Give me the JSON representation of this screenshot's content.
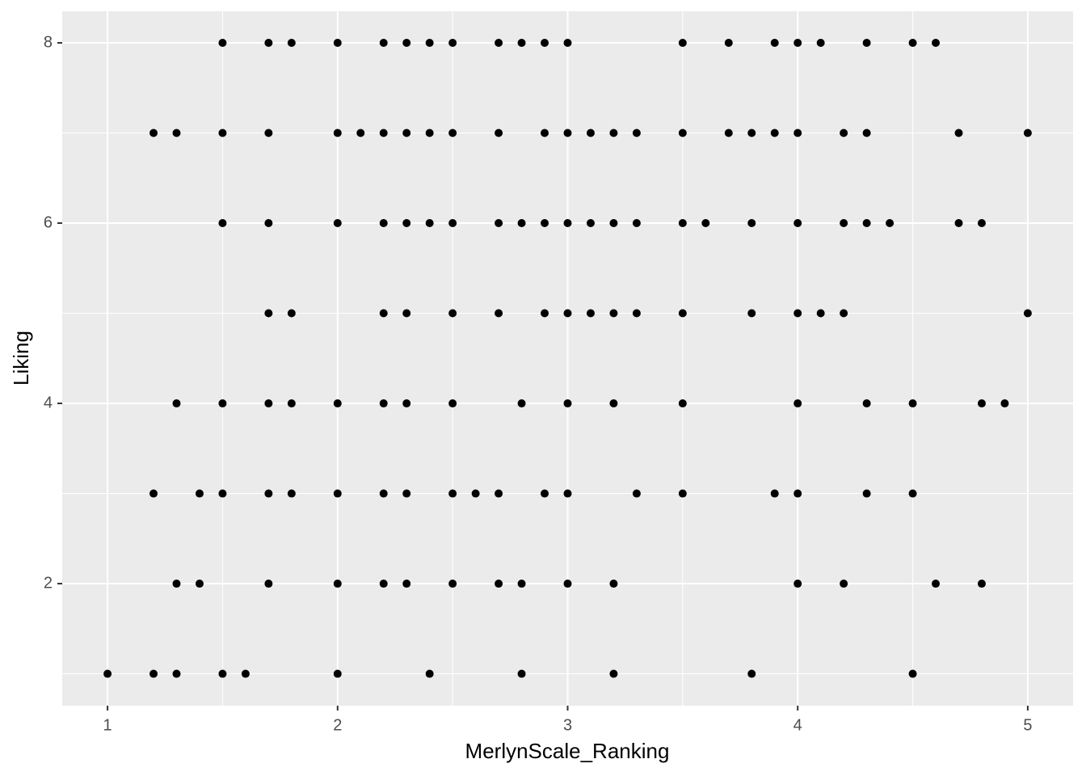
{
  "chart_data": {
    "type": "scatter",
    "x_label": "MerlynScale_Ranking",
    "y_label": "Liking",
    "xlim": [
      0.803,
      5.197
    ],
    "ylim": [
      0.646,
      8.35
    ],
    "xticks": [
      1,
      2,
      3,
      4,
      5
    ],
    "yticks": [
      2,
      4,
      6,
      8
    ],
    "minor_xticks": [
      1.5,
      2.5,
      3.5,
      4.5
    ],
    "minor_yticks": [
      1,
      3,
      5,
      7
    ],
    "grid": true,
    "color": "#000000",
    "x": [
      1.5,
      1.7,
      1.8,
      2,
      2.2,
      2.3,
      2.4,
      2.5,
      2.7,
      2.8,
      2.9,
      3,
      3.5,
      3.7,
      3.9,
      4,
      4.1,
      4.3,
      4.5,
      4.6,
      1.2,
      1.3,
      1.5,
      1.7,
      2,
      2.1,
      2.2,
      2.3,
      2.4,
      2.5,
      2.7,
      2.9,
      3,
      3.1,
      3.2,
      3.3,
      3.5,
      3.7,
      3.8,
      3.9,
      4,
      4.2,
      4.3,
      4.7,
      5,
      1.5,
      1.7,
      2,
      2.2,
      2.3,
      2.4,
      2.5,
      2.7,
      2.8,
      2.9,
      3,
      3.1,
      3.2,
      3.3,
      3.5,
      3.6,
      3.8,
      4,
      4.2,
      4.3,
      4.4,
      4.7,
      4.8,
      1.7,
      1.8,
      2.2,
      2.3,
      2.5,
      2.7,
      2.9,
      3,
      3.1,
      3.2,
      3.3,
      3.5,
      3.8,
      4,
      4.1,
      4.2,
      5,
      1.3,
      1.5,
      1.7,
      1.8,
      2,
      2.2,
      2.3,
      2.5,
      2.8,
      3,
      3.2,
      3.5,
      4,
      4.3,
      4.5,
      4.8,
      4.9,
      1.2,
      1.4,
      1.5,
      1.7,
      1.8,
      2,
      2.2,
      2.3,
      2.5,
      2.6,
      2.7,
      2.9,
      3,
      3.3,
      3.5,
      3.9,
      4,
      4.3,
      4.5,
      1.3,
      1.4,
      1.7,
      2,
      2.2,
      2.3,
      2.5,
      2.7,
      2.8,
      3,
      3.2,
      4,
      4.2,
      4.6,
      4.8,
      1,
      1.2,
      1.3,
      1.5,
      1.6,
      2,
      2.4,
      2.8,
      3.2,
      3.8,
      4.5
    ],
    "y": [
      8,
      8,
      8,
      8,
      8,
      8,
      8,
      8,
      8,
      8,
      8,
      8,
      8,
      8,
      8,
      8,
      8,
      8,
      8,
      8,
      7,
      7,
      7,
      7,
      7,
      7,
      7,
      7,
      7,
      7,
      7,
      7,
      7,
      7,
      7,
      7,
      7,
      7,
      7,
      7,
      7,
      7,
      7,
      7,
      7,
      6,
      6,
      6,
      6,
      6,
      6,
      6,
      6,
      6,
      6,
      6,
      6,
      6,
      6,
      6,
      6,
      6,
      6,
      6,
      6,
      6,
      6,
      6,
      5,
      5,
      5,
      5,
      5,
      5,
      5,
      5,
      5,
      5,
      5,
      5,
      5,
      5,
      5,
      5,
      5,
      4,
      4,
      4,
      4,
      4,
      4,
      4,
      4,
      4,
      4,
      4,
      4,
      4,
      4,
      4,
      4,
      4,
      3,
      3,
      3,
      3,
      3,
      3,
      3,
      3,
      3,
      3,
      3,
      3,
      3,
      3,
      3,
      3,
      3,
      3,
      3,
      2,
      2,
      2,
      2,
      2,
      2,
      2,
      2,
      2,
      2,
      2,
      2,
      2,
      2,
      2,
      1,
      1,
      1,
      1,
      1,
      1,
      1,
      1,
      1,
      1,
      1
    ]
  }
}
